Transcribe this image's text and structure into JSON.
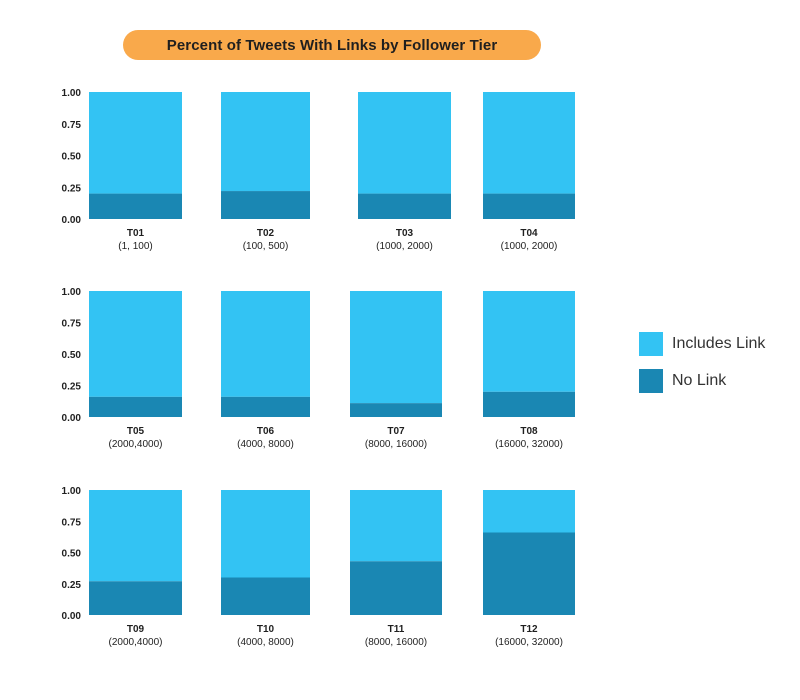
{
  "chart_data": {
    "type": "bar",
    "stacked": true,
    "title": "Percent of Tweets With Links by Follower Tier",
    "ylim": [
      0,
      1
    ],
    "yticks": [
      "1.00",
      "0.75",
      "0.50",
      "0.25",
      "0.00"
    ],
    "colors": {
      "Includes Link": "#33c3f3",
      "No Link": "#1a87b3",
      "title_bg": "#f9a94b"
    },
    "legend": [
      "Includes Link",
      "No Link"
    ],
    "legend_position": "right",
    "grid": false,
    "panels": [
      {
        "tier": "T01",
        "range": "(1, 100)",
        "no_link": 0.2,
        "includes_link": 0.8
      },
      {
        "tier": "T02",
        "range": "(100, 500)",
        "no_link": 0.22,
        "includes_link": 0.78
      },
      {
        "tier": "T03",
        "range": "(1000, 2000)",
        "no_link": 0.2,
        "includes_link": 0.8
      },
      {
        "tier": "T04",
        "range": "(1000, 2000)",
        "no_link": 0.2,
        "includes_link": 0.8
      },
      {
        "tier": "T05",
        "range": "(2000,4000)",
        "no_link": 0.16,
        "includes_link": 0.84
      },
      {
        "tier": "T06",
        "range": "(4000, 8000)",
        "no_link": 0.16,
        "includes_link": 0.84
      },
      {
        "tier": "T07",
        "range": "(8000, 16000)",
        "no_link": 0.11,
        "includes_link": 0.89
      },
      {
        "tier": "T08",
        "range": "(16000, 32000)",
        "no_link": 0.2,
        "includes_link": 0.8
      },
      {
        "tier": "T09",
        "range": "(2000,4000)",
        "no_link": 0.27,
        "includes_link": 0.73
      },
      {
        "tier": "T10",
        "range": "(4000, 8000)",
        "no_link": 0.3,
        "includes_link": 0.7
      },
      {
        "tier": "T11",
        "range": "(8000, 16000)",
        "no_link": 0.43,
        "includes_link": 0.57
      },
      {
        "tier": "T12",
        "range": "(16000, 32000)",
        "no_link": 0.66,
        "includes_link": 0.34
      }
    ]
  }
}
